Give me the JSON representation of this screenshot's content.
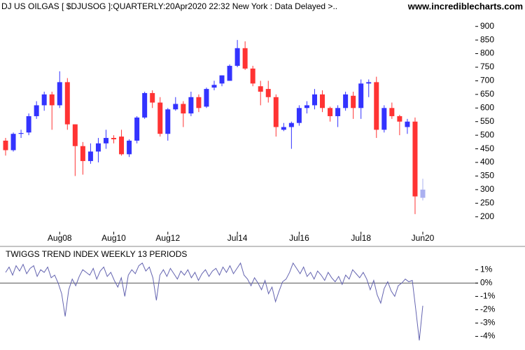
{
  "chart_data": [
    {
      "type": "candlestick",
      "title": "DJ US OILGAS [ $DJUSOG ]:QUARTERLY:20Apr2020 22:32 New York : Data Delayed >..",
      "source": "www.incrediblecharts.com",
      "categories": [
        null,
        null,
        null,
        null,
        null,
        null,
        null,
        "Aug08",
        null,
        null,
        null,
        null,
        null,
        null,
        "Aug10",
        null,
        null,
        null,
        null,
        null,
        null,
        "Aug12",
        null,
        null,
        null,
        null,
        null,
        null,
        null,
        null,
        "Jul14",
        null,
        null,
        null,
        null,
        null,
        null,
        null,
        "Jul16",
        null,
        null,
        null,
        null,
        null,
        null,
        null,
        "Jul18",
        null,
        null,
        null,
        null,
        null,
        null,
        null,
        "Jun20"
      ],
      "open": [
        480,
        445,
        505,
        510,
        570,
        610,
        650,
        610,
        695,
        540,
        460,
        405,
        440,
        470,
        490,
        495,
        430,
        480,
        565,
        655,
        620,
        505,
        595,
        615,
        580,
        640,
        605,
        675,
        690,
        700,
        755,
        820,
        745,
        680,
        670,
        640,
        520,
        530,
        545,
        600,
        610,
        650,
        600,
        570,
        600,
        645,
        600,
        690,
        695,
        520,
        600,
        570,
        530,
        550,
        270
      ],
      "high": [
        490,
        510,
        520,
        580,
        625,
        660,
        660,
        735,
        710,
        540,
        475,
        470,
        490,
        520,
        500,
        520,
        485,
        570,
        660,
        665,
        640,
        600,
        640,
        625,
        660,
        650,
        675,
        700,
        720,
        760,
        850,
        845,
        755,
        700,
        700,
        650,
        545,
        550,
        610,
        625,
        670,
        665,
        605,
        610,
        660,
        660,
        705,
        705,
        715,
        610,
        620,
        575,
        560,
        565,
        340
      ],
      "low": [
        425,
        440,
        490,
        500,
        560,
        590,
        520,
        600,
        520,
        350,
        355,
        395,
        400,
        450,
        470,
        425,
        420,
        470,
        560,
        600,
        495,
        480,
        590,
        530,
        570,
        585,
        600,
        665,
        680,
        700,
        750,
        740,
        680,
        610,
        620,
        495,
        515,
        450,
        535,
        580,
        595,
        585,
        550,
        530,
        590,
        560,
        560,
        640,
        490,
        510,
        560,
        500,
        505,
        210,
        260
      ],
      "close": [
        445,
        505,
        508,
        570,
        610,
        650,
        610,
        695,
        540,
        460,
        405,
        440,
        470,
        490,
        485,
        430,
        480,
        565,
        655,
        620,
        505,
        595,
        615,
        580,
        640,
        600,
        670,
        685,
        720,
        755,
        820,
        745,
        690,
        660,
        640,
        530,
        530,
        545,
        600,
        610,
        650,
        600,
        570,
        600,
        650,
        600,
        690,
        695,
        520,
        600,
        570,
        550,
        550,
        275,
        300
      ],
      "up_color": "#3333ff",
      "down_color": "#ff3333",
      "current_color": "#aab0f0",
      "ylim": [
        135,
        925
      ],
      "yticks": [
        200,
        250,
        300,
        350,
        400,
        450,
        500,
        550,
        600,
        650,
        700,
        750,
        800,
        850,
        900
      ]
    },
    {
      "type": "line",
      "title": "TWIGGS TREND INDEX WEEKLY 13 PERIODS",
      "color": "#6464b0",
      "values": [
        0.8,
        1.2,
        0.6,
        1.3,
        0.9,
        1.4,
        0.7,
        1.1,
        1.3,
        0.5,
        1.0,
        0.8,
        1.2,
        0.4,
        0.6,
        0.0,
        -0.8,
        -2.5,
        -0.5,
        0.3,
        -0.2,
        0.5,
        1.0,
        0.8,
        0.6,
        1.1,
        0.3,
        0.9,
        1.2,
        0.5,
        0.8,
        0.2,
        -0.3,
        0.4,
        -1.0,
        0.6,
        1.0,
        0.7,
        1.3,
        1.5,
        0.9,
        1.2,
        0.4,
        -1.3,
        0.6,
        1.0,
        0.5,
        1.1,
        0.7,
        0.3,
        0.9,
        0.6,
        1.0,
        0.4,
        0.8,
        0.2,
        0.7,
        1.0,
        0.5,
        0.9,
        1.1,
        0.6,
        1.2,
        0.8,
        1.3,
        0.7,
        1.1,
        1.5,
        0.6,
        0.3,
        -0.2,
        0.4,
        0.0,
        -0.5,
        0.2,
        -0.8,
        -0.3,
        -1.4,
        -0.6,
        0.1,
        0.3,
        0.8,
        1.5,
        1.1,
        0.7,
        1.2,
        0.5,
        0.8,
        0.3,
        0.9,
        0.6,
        0.2,
        0.8,
        0.4,
        0.1,
        0.5,
        -0.1,
        0.6,
        0.3,
        1.0,
        0.7,
        0.4,
        0.8,
        0.3,
        -0.5,
        0.2,
        -0.9,
        -1.5,
        -0.4,
        0.1,
        -0.6,
        -1.0,
        -0.2,
        0.0,
        0.3,
        0.1,
        0.2,
        -2.0,
        -4.3,
        -1.7
      ],
      "ylim": [
        -4.6,
        1.7
      ],
      "yticks": [
        {
          "value": 1,
          "label": "1%"
        },
        {
          "value": 0,
          "label": "0%"
        },
        {
          "value": -1,
          "label": "-1%"
        },
        {
          "value": -2,
          "label": "-2%"
        },
        {
          "value": -3,
          "label": "-3%"
        },
        {
          "value": -4,
          "label": "-4%"
        }
      ],
      "zero_line": true
    }
  ]
}
